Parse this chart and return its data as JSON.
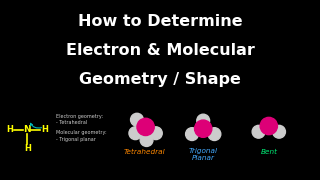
{
  "background_color": "#000000",
  "title_lines": [
    "How to Determine",
    "Electron & Molecular",
    "Geometry / Shape"
  ],
  "title_color": "#ffffff",
  "title_fontsize": 11.5,
  "nh3_label_color": "#ffff00",
  "nh3_arrow_color": "#00bbbb",
  "annotation1_text": "Electron geometry:\n- Tetrahedral",
  "annotation2_text": "Molecular geometry:\n- Trigonal planar",
  "annotation_color": "#cccccc",
  "annotation_fontsize": 3.5,
  "molecule_center_color": "#dd0077",
  "molecule_outer_color": "#cccccc",
  "tetrahedral_label": "Tetrahedral",
  "tetrahedral_label_color": "#ff8800",
  "trigonal_label": "Trigonal\nPlanar",
  "trigonal_label_color": "#44aaff",
  "bent_label": "Bent",
  "bent_label_color": "#00ee77",
  "label_fontsize": 5.2
}
